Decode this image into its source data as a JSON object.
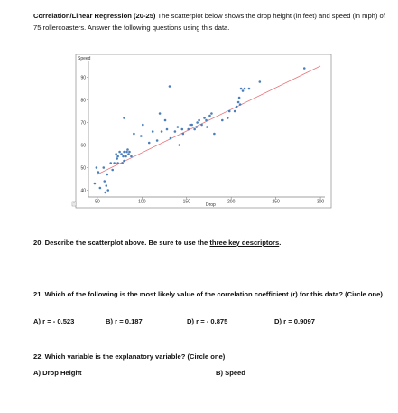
{
  "intro": {
    "title": "Correlation/Linear Regression (20-25)",
    "text": "The scatterplot below shows the drop height (in feet) and speed (in mph) of 75 rollercoasters.  Answer the following questions using this data."
  },
  "q20": {
    "prefix": "20.  Describe the scatterplot above.  Be sure to use the ",
    "underline": "three key descriptors",
    "suffix": "."
  },
  "q21": {
    "text": "21.  Which of the following is the most likely value of the correlation coefficient (r) for this data? (Circle one)",
    "choices": [
      "A) r = - 0.523",
      "B) r = 0.187",
      "D) r = - 0.875",
      "D) r = 0.9097"
    ]
  },
  "q22": {
    "text": "22.  Which variable is the explanatory variable? (Circle one)",
    "choices": [
      "A) Drop Height",
      "B) Speed"
    ]
  },
  "chart_data": {
    "type": "scatter",
    "title": "",
    "xlabel": "Drop",
    "ylabel": "Speed",
    "xlim": [
      40,
      305
    ],
    "ylim": [
      37,
      97
    ],
    "xticks": [
      50,
      100,
      150,
      200,
      250,
      300
    ],
    "yticks": [
      40,
      50,
      60,
      70,
      80,
      90
    ],
    "grid": false,
    "point_color": "#4a7ebb",
    "line_color": "#e8737a",
    "trendline": {
      "x": [
        50,
        300
      ],
      "y": [
        47,
        95
      ]
    },
    "points": [
      [
        47,
        43
      ],
      [
        49,
        50
      ],
      [
        51,
        48
      ],
      [
        53,
        41
      ],
      [
        57,
        50
      ],
      [
        58,
        44
      ],
      [
        59,
        39
      ],
      [
        60,
        42
      ],
      [
        61,
        47
      ],
      [
        62,
        40
      ],
      [
        65,
        52
      ],
      [
        67,
        49
      ],
      [
        69,
        52
      ],
      [
        71,
        56
      ],
      [
        72,
        54
      ],
      [
        73,
        52
      ],
      [
        73,
        55
      ],
      [
        75,
        57
      ],
      [
        77,
        56
      ],
      [
        78,
        52
      ],
      [
        79,
        55
      ],
      [
        80,
        53
      ],
      [
        80,
        57
      ],
      [
        82,
        55
      ],
      [
        83,
        57
      ],
      [
        84,
        58
      ],
      [
        85,
        56
      ],
      [
        86,
        57
      ],
      [
        88,
        55
      ],
      [
        91,
        65
      ],
      [
        80,
        72
      ],
      [
        99,
        64
      ],
      [
        101,
        69
      ],
      [
        108,
        61
      ],
      [
        112,
        66
      ],
      [
        117,
        62
      ],
      [
        120,
        74
      ],
      [
        122,
        66
      ],
      [
        126,
        71
      ],
      [
        128,
        67
      ],
      [
        131,
        86
      ],
      [
        132,
        63
      ],
      [
        137,
        66
      ],
      [
        142,
        60
      ],
      [
        140,
        68
      ],
      [
        145,
        67
      ],
      [
        146,
        65
      ],
      [
        152,
        67
      ],
      [
        154,
        69
      ],
      [
        156,
        69
      ],
      [
        159,
        67
      ],
      [
        162,
        70
      ],
      [
        161,
        68
      ],
      [
        164,
        71
      ],
      [
        167,
        69
      ],
      [
        170,
        72
      ],
      [
        172,
        71
      ],
      [
        173,
        68
      ],
      [
        176,
        73
      ],
      [
        178,
        74
      ],
      [
        181,
        65
      ],
      [
        190,
        71
      ],
      [
        196,
        72
      ],
      [
        198,
        75
      ],
      [
        204,
        75
      ],
      [
        206,
        77
      ],
      [
        208,
        79
      ],
      [
        209,
        81
      ],
      [
        210,
        78
      ],
      [
        211,
        85
      ],
      [
        213,
        84
      ],
      [
        215,
        85
      ],
      [
        220,
        85
      ],
      [
        232,
        88
      ],
      [
        282,
        94
      ]
    ]
  }
}
